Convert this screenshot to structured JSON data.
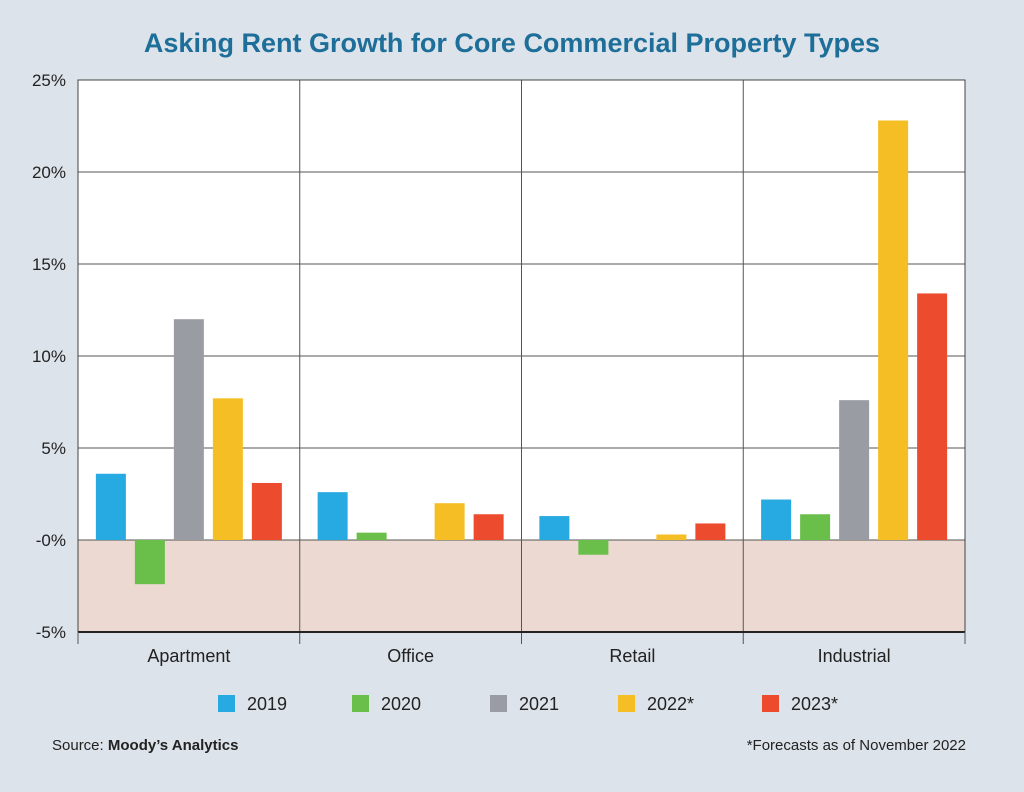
{
  "chart_data": {
    "type": "bar",
    "title": "Asking Rent Growth for Core Commercial Property Types",
    "categories": [
      "Apartment",
      "Office",
      "Retail",
      "Industrial"
    ],
    "series": [
      {
        "name": "2019",
        "color": "#27a9e1",
        "values": [
          3.6,
          2.6,
          1.3,
          2.2
        ]
      },
      {
        "name": "2020",
        "color": "#6abf4b",
        "values": [
          -2.4,
          0.4,
          -0.8,
          1.4
        ]
      },
      {
        "name": "2021",
        "color": "#999da3",
        "values": [
          12.0,
          0,
          0,
          7.6
        ]
      },
      {
        "name": "2022*",
        "color": "#f5be25",
        "values": [
          7.7,
          2.0,
          0.3,
          22.8
        ]
      },
      {
        "name": "2023*",
        "color": "#ec4b2e",
        "values": [
          3.1,
          1.4,
          0.9,
          13.4
        ]
      }
    ],
    "ylim": [
      -5,
      25
    ],
    "yticks": [
      25,
      20,
      15,
      10,
      5,
      0,
      -5
    ],
    "ytick_labels": [
      "25%",
      "20%",
      "15%",
      "10%",
      "5%",
      "-0%",
      "-5%"
    ],
    "negative_region_color": "#ecd9d1",
    "grid": true,
    "legend_position": "bottom"
  },
  "footer": {
    "source_prefix": "Source: ",
    "source_name": "Moody’s Analytics",
    "forecast_note": "*Forecasts as of November 2022"
  }
}
